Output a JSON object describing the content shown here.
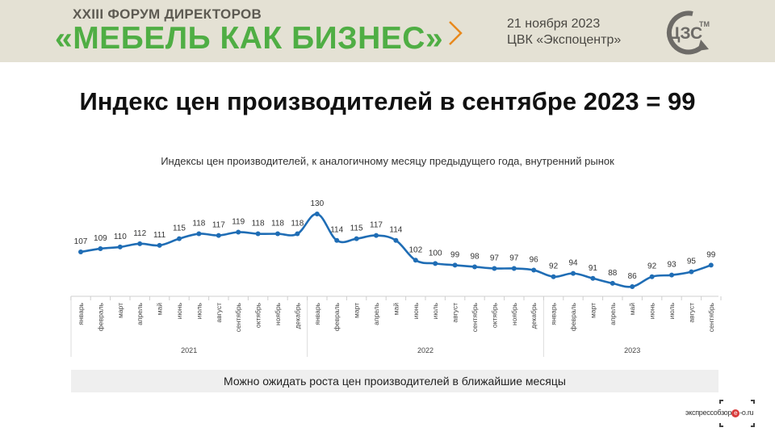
{
  "header": {
    "forum_subtitle": "XXIII ФОРУМ ДИРЕКТОРОВ",
    "forum_title": "«МЕБЕЛЬ КАК БИЗНЕС»",
    "event_date": "21 ноября 2023",
    "event_venue": "ЦВК «Экспоцентр»",
    "logo_text": "ЦЗС",
    "logo_tm": "TM",
    "accent_color": "#4fae44",
    "chevron_color": "#e8891d",
    "logo_color": "#6d6b67"
  },
  "main_title": "Индекс цен производителей в сентябре 2023 = 99",
  "chart_data": {
    "type": "line",
    "title": "Индексы цен производителей, к аналогичному месяцу предыдущего года, внутренний рынок",
    "categories": [
      "январь",
      "февраль",
      "март",
      "апрель",
      "май",
      "июнь",
      "июль",
      "август",
      "сентябрь",
      "октябрь",
      "ноябрь",
      "декабрь",
      "январь",
      "февраль",
      "март",
      "апрель",
      "май",
      "июнь",
      "июль",
      "август",
      "сентябрь",
      "октябрь",
      "ноябрь",
      "декабрь",
      "январь",
      "февраль",
      "март",
      "апрель",
      "май",
      "июнь",
      "июль",
      "август",
      "сентябрь"
    ],
    "years": [
      "2021",
      "2022",
      "2023"
    ],
    "values": [
      107,
      109,
      110,
      112,
      111,
      115,
      118,
      117,
      119,
      118,
      118,
      118,
      130,
      114,
      115,
      117,
      114,
      102,
      100,
      99,
      98,
      97,
      97,
      96,
      92,
      94,
      91,
      88,
      86,
      92,
      93,
      95,
      99
    ],
    "line_color": "#1f6db5",
    "ylim": [
      80,
      135
    ]
  },
  "note": "Можно ожидать роста цен производителей в ближайшие месяцы",
  "watermark": {
    "text_left": "экспрессобзор",
    "text_circle": "е",
    "text_right": "-о.ru",
    "accent_color": "#d83a3a"
  }
}
